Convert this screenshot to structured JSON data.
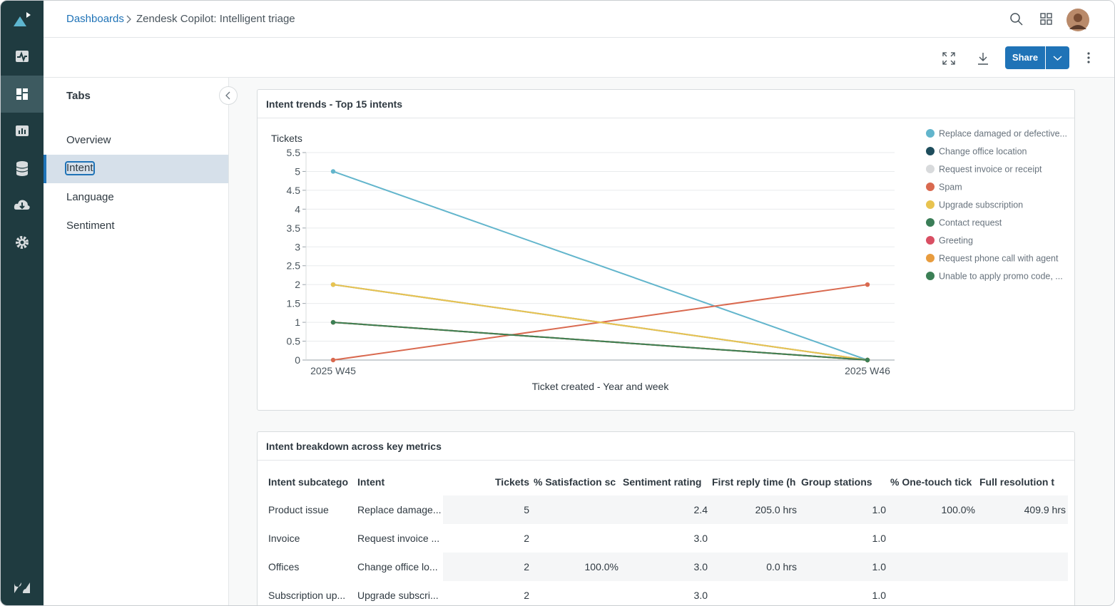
{
  "breadcrumb": {
    "root": "Dashboards",
    "current": "Zendesk Copilot: Intelligent triage"
  },
  "toolbar": {
    "share": "Share"
  },
  "tabs": {
    "title": "Tabs",
    "items": [
      "Overview",
      "Intent",
      "Language",
      "Sentiment"
    ],
    "selected_index": 1
  },
  "chart_data": {
    "type": "line",
    "title": "Intent trends - Top 15 intents",
    "y_label": "Tickets",
    "x_label": "Ticket created - Year and week",
    "categories": [
      "2025 W45",
      "2025 W46"
    ],
    "ylim": [
      0,
      5.5
    ],
    "yticks": [
      0,
      0.5,
      1,
      1.5,
      2,
      2.5,
      3,
      3.5,
      4,
      4.5,
      5,
      5.5
    ],
    "grid": true,
    "legend": "right",
    "series": [
      {
        "name": "Replace damaged or defective...",
        "color": "#62b5cc",
        "values": [
          5,
          0
        ]
      },
      {
        "name": "Change office location",
        "color": "#1e4d5c",
        "values": [
          2,
          0
        ]
      },
      {
        "name": "Request invoice or receipt",
        "color": "#d8dadc",
        "values": [
          2,
          0
        ]
      },
      {
        "name": "Spam",
        "color": "#d9694f",
        "values": [
          0,
          2
        ]
      },
      {
        "name": "Upgrade subscription",
        "color": "#e8c34f",
        "values": [
          2,
          0
        ]
      },
      {
        "name": "Contact request",
        "color": "#3a7d57",
        "values": [
          1,
          0
        ]
      },
      {
        "name": "Greeting",
        "color": "#d94f63",
        "values": [
          1,
          0
        ]
      },
      {
        "name": "Request phone call with agent",
        "color": "#e89c3e",
        "values": [
          1,
          0
        ]
      },
      {
        "name": "Unable to apply promo code, ...",
        "color": "#3b7f55",
        "values": [
          1,
          0
        ]
      }
    ]
  },
  "table": {
    "title": "Intent breakdown across key metrics",
    "columns": [
      "Intent subcatego",
      "Intent",
      "Tickets",
      "% Satisfaction sc",
      "Sentiment rating",
      "First reply time (h",
      "Group stations",
      "% One-touch tick",
      "Full resolution t"
    ],
    "rows": [
      [
        "Product issue",
        "Replace damage...",
        5,
        null,
        "2.4",
        "205.0 hrs",
        "1.0",
        "100.0%",
        "409.9 hrs"
      ],
      [
        "Invoice",
        "Request invoice ...",
        2,
        null,
        "3.0",
        null,
        "1.0",
        null,
        null
      ],
      [
        "Offices",
        "Change office lo...",
        2,
        "100.0%",
        "3.0",
        "0.0 hrs",
        "1.0",
        null,
        null
      ],
      [
        "Subscription up...",
        "Upgrade subscri...",
        2,
        null,
        "3.0",
        null,
        "1.0",
        null,
        null
      ]
    ]
  }
}
